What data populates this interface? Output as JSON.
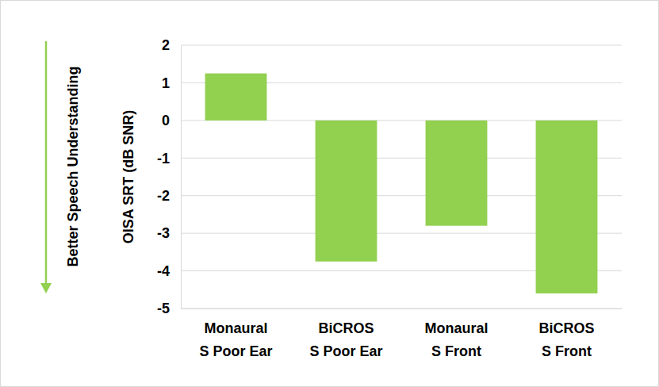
{
  "chart_data": {
    "type": "bar",
    "y_label": "OISA SRT (dB SNR)",
    "annotations": [
      "Better Speech Understanding"
    ],
    "categories": [
      "Monaural S Poor Ear",
      "BiCROS S Poor Ear",
      "Monaural S Front",
      "BiCROS S Front"
    ],
    "values": [
      1.25,
      -3.75,
      -2.8,
      -4.6
    ],
    "color": "#92d050",
    "ylim": [
      -5,
      2
    ],
    "yticks": [
      -5,
      -4,
      -3,
      -2,
      -1,
      0,
      1,
      2
    ],
    "grid": true
  }
}
